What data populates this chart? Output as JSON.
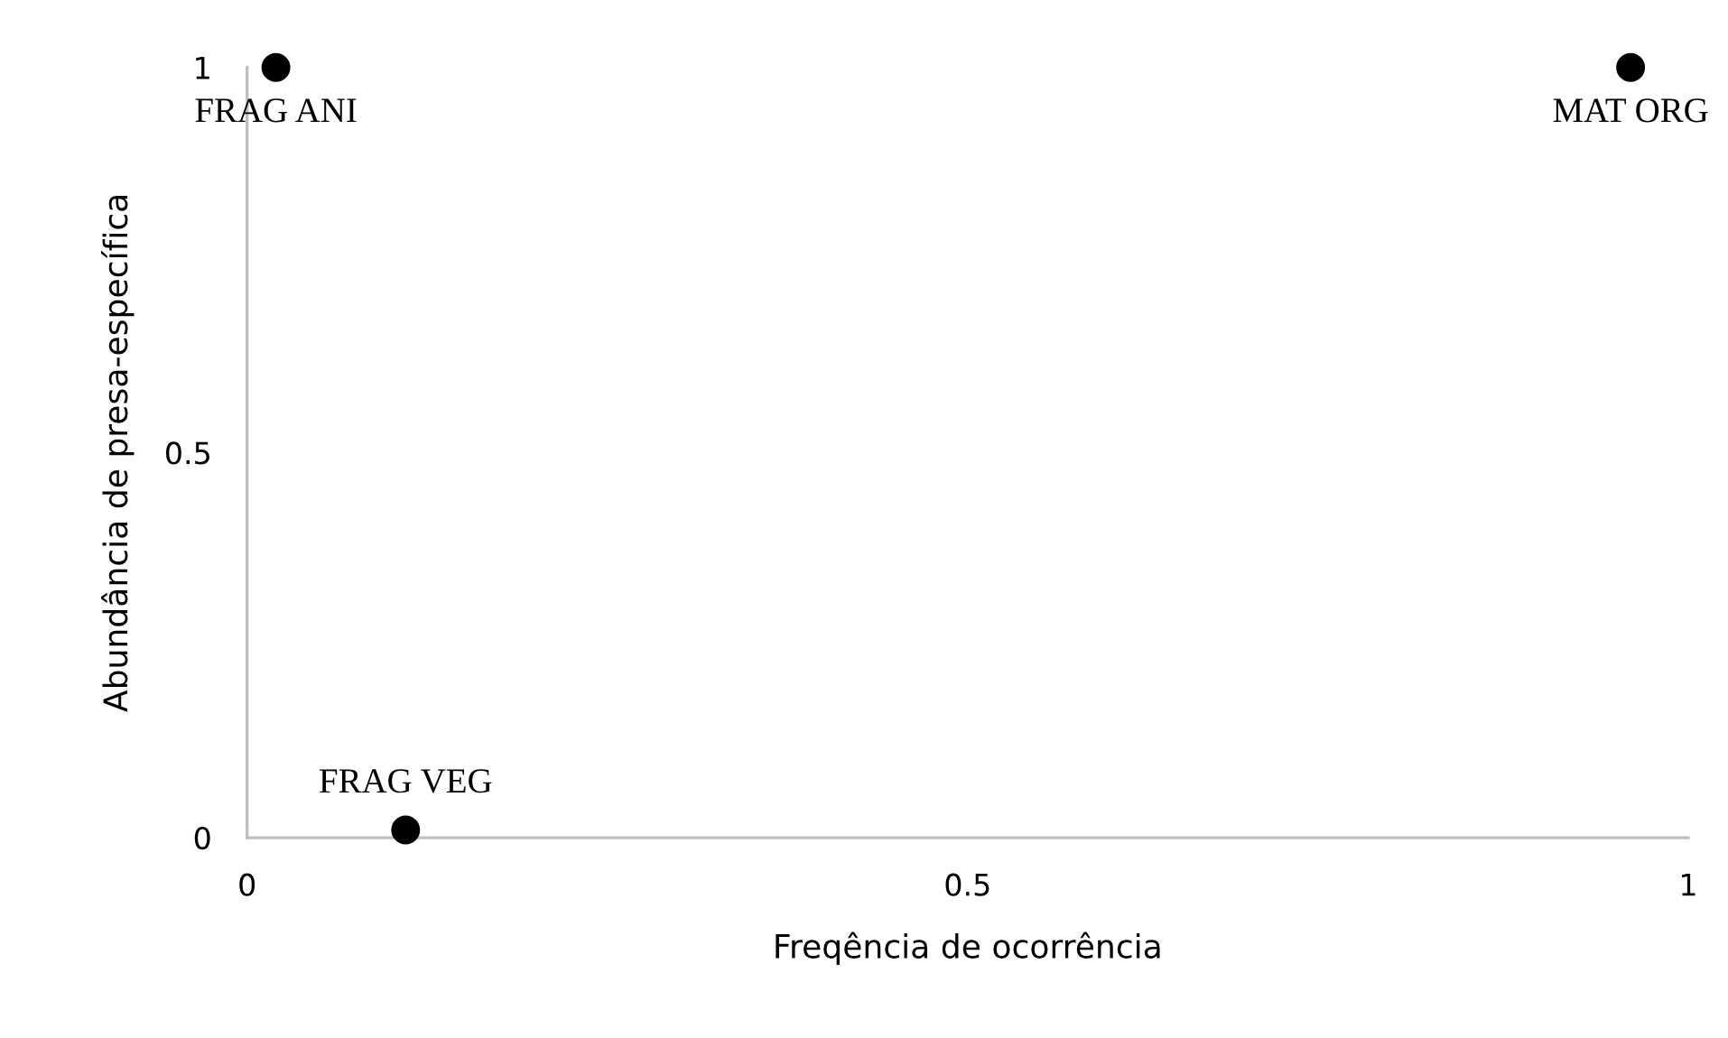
{
  "chart_data": {
    "type": "scatter",
    "xlabel": "Freqência de ocorrência",
    "ylabel": "Abundância de presa-específica",
    "x": [
      0.02,
      0.96,
      0.11
    ],
    "values": [
      1,
      1,
      0.01
    ],
    "color": "#000000",
    "marker": "circle",
    "xlim": [
      0,
      1
    ],
    "ylim": [
      0,
      1
    ],
    "xticks": [
      0,
      0.5,
      1
    ],
    "yticks": [
      0,
      0.5,
      1
    ],
    "grid": false,
    "legend": false,
    "annotations": [
      {
        "text": "FRAG ANI",
        "x": 0.02,
        "y": 1
      },
      {
        "text": "MAT ORG",
        "x": 0.96,
        "y": 1
      },
      {
        "text": "FRAG VEG",
        "x": 0.11,
        "y": 0.01
      }
    ]
  }
}
